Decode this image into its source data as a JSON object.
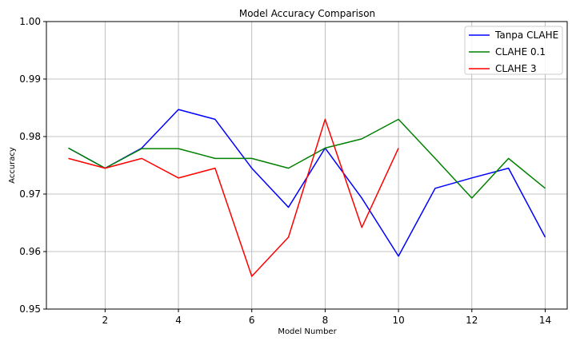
{
  "chart_data": {
    "type": "line",
    "title": "Model Accuracy Comparison",
    "xlabel": "Model Number",
    "ylabel": "Accuracy",
    "xlim": [
      0.4,
      14.6
    ],
    "ylim": [
      0.95,
      1.0
    ],
    "xticks": [
      2,
      4,
      6,
      8,
      10,
      12,
      14
    ],
    "xtick_labels": [
      "2",
      "4",
      "6",
      "8",
      "10",
      "12",
      "14"
    ],
    "yticks": [
      0.95,
      0.96,
      0.97,
      0.98,
      0.99,
      1.0
    ],
    "ytick_labels": [
      "0.95",
      "0.96",
      "0.97",
      "0.98",
      "0.99",
      "1.00"
    ],
    "grid": true,
    "legend_position": "top-right",
    "series": [
      {
        "name": "Tanpa CLAHE",
        "color": "#0000ff",
        "x": [
          1,
          2,
          3,
          4,
          5,
          6,
          7,
          8,
          9,
          10,
          11,
          12,
          13,
          14
        ],
        "values": [
          0.978,
          0.9745,
          0.978,
          0.9847,
          0.983,
          0.9745,
          0.9677,
          0.978,
          0.9693,
          0.9592,
          0.971,
          0.9728,
          0.9745,
          0.9625
        ]
      },
      {
        "name": "CLAHE 0.1",
        "color": "#008000",
        "x": [
          1,
          2,
          3,
          4,
          5,
          6,
          7,
          8,
          9,
          10,
          11,
          12,
          13,
          14
        ],
        "values": [
          0.978,
          0.9745,
          0.9779,
          0.9779,
          0.9762,
          0.9762,
          0.9745,
          0.978,
          0.9796,
          0.983,
          0.9762,
          0.9693,
          0.9762,
          0.971
        ]
      },
      {
        "name": "CLAHE 3",
        "color": "#ff0000",
        "x": [
          1,
          2,
          3,
          4,
          5,
          6,
          7,
          8,
          9,
          10
        ],
        "values": [
          0.9762,
          0.9745,
          0.9762,
          0.9728,
          0.9745,
          0.9557,
          0.9625,
          0.983,
          0.9642,
          0.978
        ]
      }
    ]
  }
}
